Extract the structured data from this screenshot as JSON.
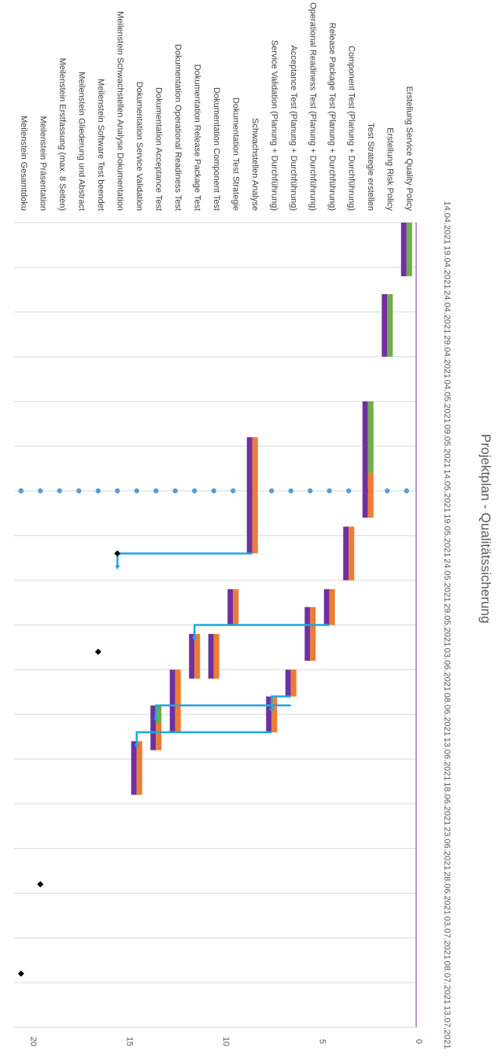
{
  "chart_data": {
    "type": "bar",
    "subtype": "gantt",
    "title": "Projektplan - Qualitätssicherung",
    "orientation": "rotated-90-clockwise",
    "value_axis": {
      "min": 0,
      "max": 20,
      "ticks": [
        0,
        5,
        10,
        15,
        20
      ]
    },
    "date_axis": {
      "min": "14.04.2021",
      "max": "13.07.2021",
      "ticks": [
        "14.04.2021",
        "19.04.2021",
        "24.04.2021",
        "29.04.2021",
        "04.05.2021",
        "09.05.2021",
        "14.05.2021",
        "19.05.2021",
        "24.05.2021",
        "29.05.2021",
        "03.06.2021",
        "08.06.2021",
        "13.06.2021",
        "18.06.2021",
        "23.06.2021",
        "28.06.2021",
        "03.07.2021",
        "08.07.2021",
        "13.07.2021"
      ]
    },
    "categories": [
      "Erstellung Service Quality Policy",
      "Erstellung Risk Policy",
      "Test Strategie erstellen",
      "Component Test (Planung + Durchführung)",
      "Release Package Test (Planung + Durchführung)",
      "Operational Readiness Test   (Planung + Durchführung)",
      "Acceptance Test (Planung + Durchführung)",
      "Service Validation (Planung + Durchführung)",
      "Schwachstellen Analyse",
      "Dokumentation Test Strategie",
      "Dokumentation Component Test",
      "Dokumentation Release Package  Test",
      "Dokumentation Operational Readiness Test",
      "Dokumentation Acceptance Test",
      "Dokumentation Service Validation",
      "Meilenstein  Schwachstellen Analyse Dokumentation",
      "Meilenstein  Software Test beendet",
      "Meilenstein Gliederung und Abstract",
      "Meilenstein Erstfassung (max. 8 Seiten)",
      "Meilenstein Präsentation",
      "Meilenstein Gesamtdoku"
    ],
    "tasks": [
      {
        "y": 0.5,
        "start": "14.04.2021",
        "end": "20.04.2021",
        "split": null
      },
      {
        "y": 1.5,
        "start": "22.04.2021",
        "end": "29.04.2021",
        "split": null
      },
      {
        "y": 2.5,
        "start": "04.05.2021",
        "end": "17.05.2021",
        "split": "12.05.2021"
      },
      {
        "y": 3.5,
        "start": "18.05.2021",
        "end": "24.05.2021",
        "split": "18.05.2021"
      },
      {
        "y": 4.5,
        "start": "25.05.2021",
        "end": "29.05.2021",
        "split": "25.05.2021"
      },
      {
        "y": 5.5,
        "start": "27.05.2021",
        "end": "02.06.2021",
        "split": "27.05.2021"
      },
      {
        "y": 6.5,
        "start": "03.06.2021",
        "end": "06.06.2021",
        "split": "03.06.2021"
      },
      {
        "y": 7.5,
        "start": "06.06.2021",
        "end": "10.06.2021",
        "split": "06.06.2021"
      },
      {
        "y": 8.5,
        "start": "08.05.2021",
        "end": "21.05.2021",
        "split": "08.05.2021"
      },
      {
        "y": 9.5,
        "start": "25.05.2021",
        "end": "29.05.2021",
        "split": "25.05.2021"
      },
      {
        "y": 10.5,
        "start": "30.05.2021",
        "end": "04.06.2021",
        "split": "30.05.2021"
      },
      {
        "y": 11.5,
        "start": "30.05.2021",
        "end": "04.06.2021",
        "split": "30.05.2021"
      },
      {
        "y": 12.5,
        "start": "03.06.2021",
        "end": "10.06.2021",
        "split": "03.06.2021"
      },
      {
        "y": 13.5,
        "start": "07.06.2021",
        "end": "12.06.2021",
        "split": "09.06.2021"
      },
      {
        "y": 14.5,
        "start": "11.06.2021",
        "end": "17.06.2021",
        "split": "11.06.2021"
      }
    ],
    "milestones": [
      {
        "y": 15.5,
        "date": "21.05.2021"
      },
      {
        "y": 16.5,
        "date": "01.06.2021"
      },
      {
        "y": 19.5,
        "date": "27.06.2021"
      },
      {
        "y": 20.5,
        "date": "07.07.2021"
      }
    ],
    "status_line": {
      "date": "14.05.2021",
      "from": 0,
      "to": 20.5
    },
    "arrows": [
      {
        "from_date": "21.05.2021",
        "from_y": 8.5,
        "to_date": "21.05.2021",
        "to_y": 15.5
      },
      {
        "from_date": "29.05.2021",
        "from_y": 4.5,
        "to_date": "29.05.2021",
        "to_y": 11.5
      },
      {
        "from_date": "06.06.2021",
        "from_y": 6.5,
        "to_date": "06.06.2021",
        "to_y": 7.5
      },
      {
        "from_date": "07.06.2021",
        "from_y": 6.5,
        "to_date": "07.06.2021",
        "to_y": 13.5
      },
      {
        "from_date": "10.06.2021",
        "from_y": 7.5,
        "to_date": "10.06.2021",
        "to_y": 14.5
      }
    ],
    "colors": {
      "plan": "#7030a0",
      "done": "#70ad47",
      "remaining": "#ed7d31",
      "arrow": "#1ea7e1",
      "status": "#5b9bd5",
      "milestone": "#000000",
      "date_axis": "#7030a0",
      "grid": "#d9d9d9"
    }
  }
}
